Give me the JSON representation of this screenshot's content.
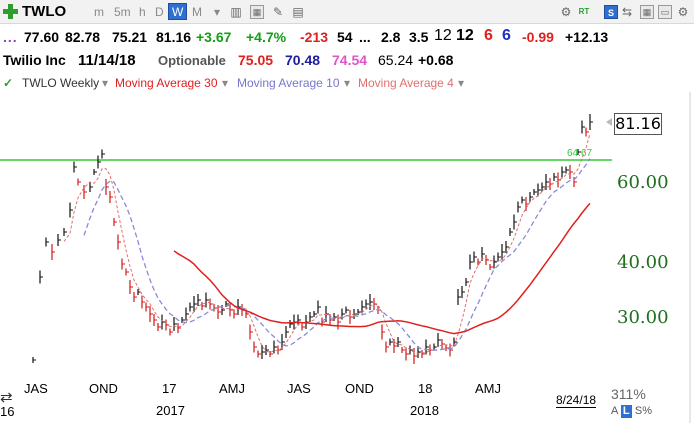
{
  "toolbar": {
    "ticker": "TWLO",
    "timeframes": [
      "m",
      "5m",
      "h",
      "D",
      "W",
      "M"
    ],
    "active_timeframe": "W",
    "icons": [
      "grid-icon",
      "box-plus-icon",
      "pencil-icon",
      "gear-icon",
      "rt-icon",
      "sentiment-icon",
      "max-icon",
      "close-icon"
    ],
    "rt_label": "RT",
    "s_label": "S"
  },
  "quote": {
    "dots": "...",
    "open": "77.60",
    "high": "82.78",
    "low": "75.21",
    "close": "81.16",
    "change": "+3.67",
    "change_pct": "+4.7%",
    "v1": "-213",
    "v2": "54",
    "v3": "...",
    "v4": "2.8",
    "v5": "3.5",
    "v6": "12",
    "v7": "12",
    "v8": "6",
    "v9": "6",
    "v10": "-0.99",
    "v11": "+12.13"
  },
  "company": {
    "name": "Twilio Inc",
    "date": "11/14/18",
    "optionable": "Optionable",
    "ma30": "75.05",
    "ma10": "70.48",
    "ma4": "74.54",
    "v": "65.24",
    "chg": "+0.68"
  },
  "legend": {
    "symbol": "TWLO Weekly",
    "ma30": "Moving Average 30",
    "ma10": "Moving Average 10",
    "ma4": "Moving Average 4"
  },
  "price_label": "81.16",
  "line_label": "64.67",
  "y_labels": [
    "60.00",
    "40.00",
    "30.00"
  ],
  "x_labels": [
    "JAS",
    "OND",
    "17",
    "AMJ",
    "JAS",
    "OND",
    "18",
    "AMJ"
  ],
  "year_labels": [
    "2017",
    "2018"
  ],
  "left_year": "16",
  "zoom": "311%",
  "scale": {
    "a": "A",
    "l": "L",
    "s": "S%"
  },
  "last_date": "8/24/18",
  "colors": {
    "ma30": "#e0201e",
    "ma10": "#8a8ad8",
    "ma4": "#e07070",
    "green_line": "#33cc33"
  }
}
